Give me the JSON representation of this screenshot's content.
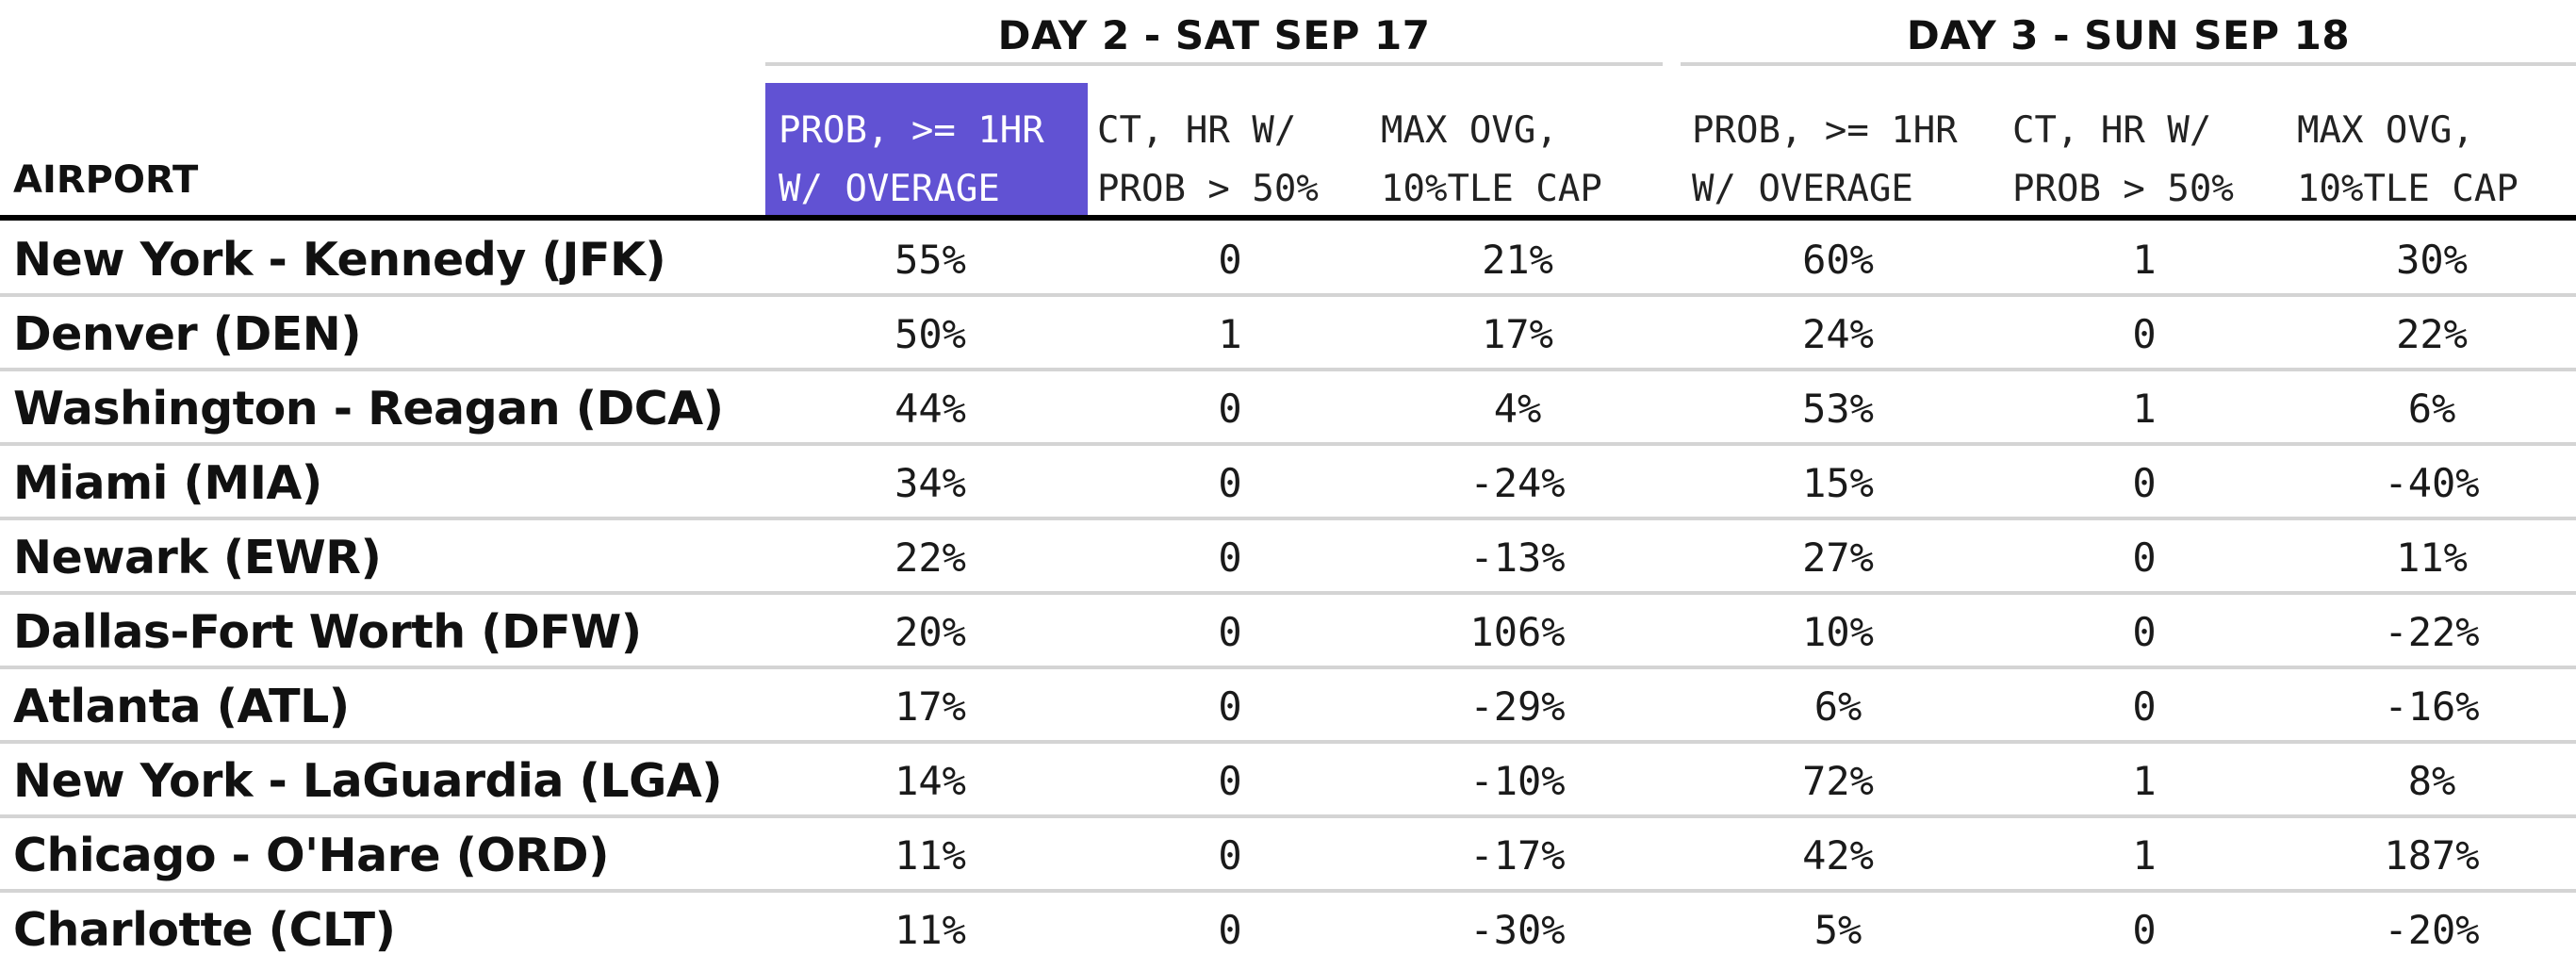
{
  "chart_data": {
    "type": "table",
    "row_header": "AIRPORT",
    "groups": [
      {
        "title": "DAY 2 - SAT SEP 17",
        "columns": [
          {
            "label_lines": [
              "PROB, >= 1HR",
              "W/ OVERAGE"
            ],
            "highlighted": true
          },
          {
            "label_lines": [
              "CT, HR W/",
              "PROB > 50%"
            ],
            "highlighted": false
          },
          {
            "label_lines": [
              "MAX OVG,",
              "10%TLE CAP"
            ],
            "highlighted": false
          }
        ]
      },
      {
        "title": "DAY 3 - SUN SEP 18",
        "columns": [
          {
            "label_lines": [
              "PROB, >= 1HR",
              "W/ OVERAGE"
            ],
            "highlighted": false
          },
          {
            "label_lines": [
              "CT, HR W/",
              "PROB > 50%"
            ],
            "highlighted": false
          },
          {
            "label_lines": [
              "MAX OVG,",
              "10%TLE CAP"
            ],
            "highlighted": false
          }
        ]
      }
    ],
    "rows": [
      {
        "airport": "New York - Kennedy (JFK)",
        "values": [
          "55%",
          "0",
          "21%",
          "60%",
          "1",
          "30%"
        ]
      },
      {
        "airport": "Denver (DEN)",
        "values": [
          "50%",
          "1",
          "17%",
          "24%",
          "0",
          "22%"
        ]
      },
      {
        "airport": "Washington - Reagan (DCA)",
        "values": [
          "44%",
          "0",
          "4%",
          "53%",
          "1",
          "6%"
        ]
      },
      {
        "airport": "Miami (MIA)",
        "values": [
          "34%",
          "0",
          "-24%",
          "15%",
          "0",
          "-40%"
        ]
      },
      {
        "airport": "Newark (EWR)",
        "values": [
          "22%",
          "0",
          "-13%",
          "27%",
          "0",
          "11%"
        ]
      },
      {
        "airport": "Dallas-Fort Worth (DFW)",
        "values": [
          "20%",
          "0",
          "106%",
          "10%",
          "0",
          "-22%"
        ]
      },
      {
        "airport": "Atlanta (ATL)",
        "values": [
          "17%",
          "0",
          "-29%",
          "6%",
          "0",
          "-16%"
        ]
      },
      {
        "airport": "New York - LaGuardia (LGA)",
        "values": [
          "14%",
          "0",
          "-10%",
          "72%",
          "1",
          "8%"
        ]
      },
      {
        "airport": "Chicago - O'Hare (ORD)",
        "values": [
          "11%",
          "0",
          "-17%",
          "42%",
          "1",
          "187%"
        ]
      },
      {
        "airport": "Charlotte (CLT)",
        "values": [
          "11%",
          "0",
          "-30%",
          "5%",
          "0",
          "-20%"
        ]
      }
    ],
    "colors": {
      "highlight": "#6152d3",
      "rule": "#d4d4d4",
      "header_rule": "#000000"
    }
  }
}
